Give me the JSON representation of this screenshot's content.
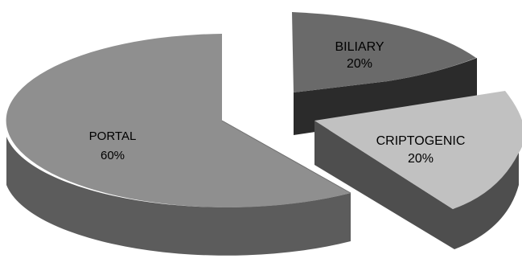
{
  "chart_data": {
    "type": "pie",
    "style": "3d-exploded",
    "title": "",
    "slices": [
      {
        "label": "PORTAL",
        "value": 60,
        "value_label": "60%",
        "color": "#8f8f8f"
      },
      {
        "label": "BILIARY",
        "value": 20,
        "value_label": "20%",
        "color": "#6a6a6a"
      },
      {
        "label": "CRIPTOGENIC",
        "value": 20,
        "value_label": "20%",
        "color": "#c1c1c1"
      }
    ]
  },
  "colors": {
    "background": "#ffffff",
    "portal_side": "#5c5c5c",
    "biliary_side": "#2b2b2b",
    "criptogenic_side": "#4e4e4e"
  }
}
